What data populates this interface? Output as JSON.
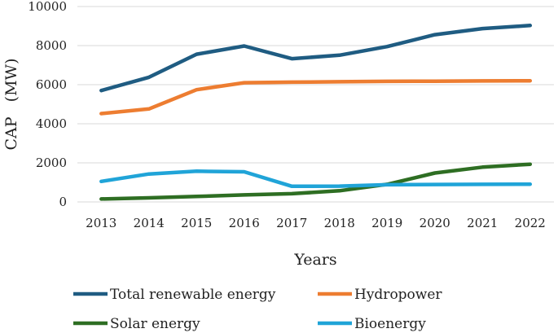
{
  "chart_data": {
    "type": "line",
    "title": "",
    "xlabel": "Years",
    "ylabel": "CAP   (MW)",
    "ylim": [
      0,
      10000
    ],
    "yticks": [
      0,
      2000,
      4000,
      6000,
      8000,
      10000
    ],
    "ytick_labels": [
      "0",
      "2000",
      "4000",
      "6000",
      "8000",
      "10000"
    ],
    "grid": "horizontal",
    "legend_position": "bottom",
    "categories": [
      "2013",
      "2014",
      "2015",
      "2016",
      "2017",
      "2018",
      "2019",
      "2020",
      "2021",
      "2022"
    ],
    "series": [
      {
        "name": "Total renewable energy",
        "color": "#1f5c82",
        "values": [
          5700,
          6380,
          7560,
          7980,
          7330,
          7510,
          7950,
          8560,
          8870,
          9030
        ]
      },
      {
        "name": "Hydropower",
        "color": "#ed7d31",
        "values": [
          4520,
          4760,
          5740,
          6100,
          6130,
          6150,
          6170,
          6180,
          6190,
          6200
        ]
      },
      {
        "name": "Solar energy",
        "color": "#2e6e23",
        "values": [
          150,
          210,
          280,
          360,
          420,
          570,
          900,
          1480,
          1780,
          1930
        ]
      },
      {
        "name": "Bioenergy",
        "color": "#20a4d8",
        "values": [
          1050,
          1430,
          1570,
          1540,
          800,
          810,
          880,
          890,
          900,
          910
        ]
      }
    ]
  }
}
